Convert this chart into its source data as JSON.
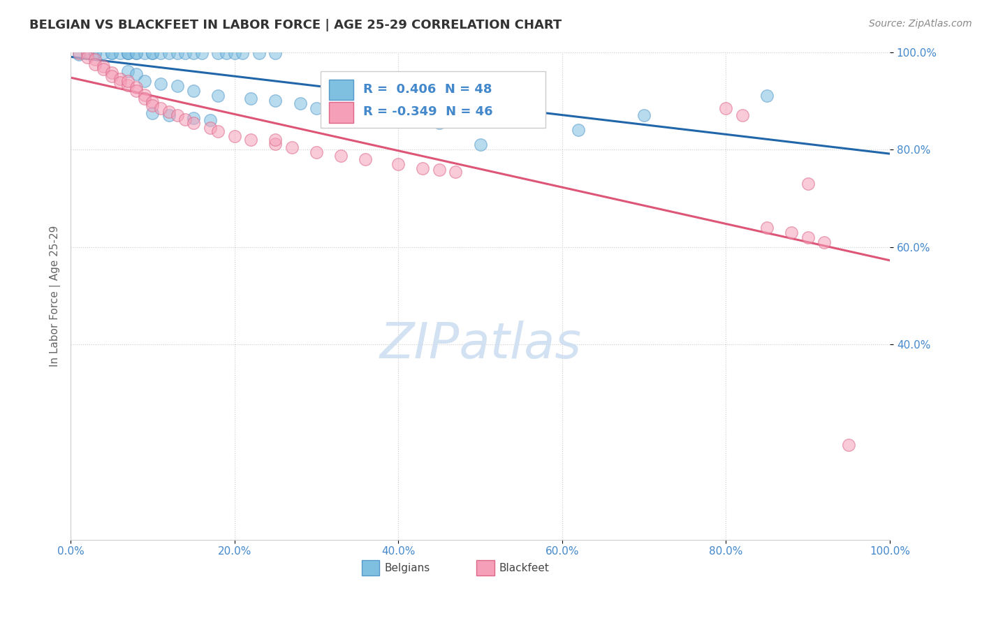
{
  "title": "BELGIAN VS BLACKFEET IN LABOR FORCE | AGE 25-29 CORRELATION CHART",
  "source_text": "Source: ZipAtlas.com",
  "ylabel": "In Labor Force | Age 25-29",
  "xlim": [
    0.0,
    1.0
  ],
  "ylim": [
    0.0,
    1.0
  ],
  "belgian_R": 0.406,
  "belgian_N": 48,
  "blackfeet_R": -0.349,
  "blackfeet_N": 46,
  "blue_scatter_color": "#7fbfdf",
  "blue_edge_color": "#5599cc",
  "blue_line_color": "#2266aa",
  "pink_scatter_color": "#f5a0b8",
  "pink_edge_color": "#dd6688",
  "pink_line_color": "#dd5577",
  "legend_label_1": "Belgians",
  "legend_label_2": "Blackfeet",
  "watermark_color": "#ccddf0",
  "grid_color": "#cccccc",
  "tick_color": "#4488cc",
  "title_color": "#333333",
  "source_color": "#888888",
  "belgians_x": [
    0.01,
    0.02,
    0.03,
    0.03,
    0.04,
    0.05,
    0.05,
    0.06,
    0.07,
    0.07,
    0.07,
    0.08,
    0.08,
    0.09,
    0.1,
    0.1,
    0.11,
    0.12,
    0.13,
    0.14,
    0.15,
    0.16,
    0.18,
    0.19,
    0.2,
    0.21,
    0.23,
    0.25,
    0.07,
    0.08,
    0.09,
    0.11,
    0.13,
    0.15,
    0.18,
    0.22,
    0.25,
    0.28,
    0.3,
    0.1,
    0.12,
    0.15,
    0.17,
    0.45,
    0.5,
    0.62,
    0.7,
    0.85
  ],
  "belgians_y": [
    0.995,
    0.998,
    0.998,
    0.998,
    0.998,
    0.998,
    0.998,
    0.998,
    0.998,
    0.998,
    0.998,
    0.998,
    0.998,
    0.998,
    0.998,
    0.998,
    0.998,
    0.998,
    0.998,
    0.998,
    0.998,
    0.998,
    0.998,
    0.998,
    0.998,
    0.998,
    0.998,
    0.998,
    0.96,
    0.955,
    0.94,
    0.935,
    0.93,
    0.92,
    0.91,
    0.905,
    0.9,
    0.895,
    0.885,
    0.875,
    0.87,
    0.865,
    0.86,
    0.855,
    0.81,
    0.84,
    0.87,
    0.91
  ],
  "blackfeet_x": [
    0.01,
    0.02,
    0.02,
    0.03,
    0.03,
    0.04,
    0.04,
    0.05,
    0.05,
    0.06,
    0.06,
    0.07,
    0.07,
    0.08,
    0.08,
    0.09,
    0.09,
    0.1,
    0.1,
    0.11,
    0.12,
    0.13,
    0.14,
    0.15,
    0.17,
    0.18,
    0.2,
    0.22,
    0.25,
    0.27,
    0.3,
    0.33,
    0.36,
    0.4,
    0.43,
    0.47,
    0.8,
    0.82,
    0.85,
    0.88,
    0.9,
    0.92,
    0.95,
    0.25,
    0.45,
    0.9
  ],
  "blackfeet_y": [
    0.998,
    0.998,
    0.99,
    0.985,
    0.975,
    0.97,
    0.965,
    0.958,
    0.95,
    0.945,
    0.938,
    0.932,
    0.94,
    0.928,
    0.92,
    0.912,
    0.905,
    0.898,
    0.89,
    0.885,
    0.877,
    0.87,
    0.862,
    0.855,
    0.845,
    0.838,
    0.828,
    0.82,
    0.812,
    0.805,
    0.795,
    0.788,
    0.78,
    0.77,
    0.762,
    0.755,
    0.885,
    0.87,
    0.64,
    0.63,
    0.62,
    0.61,
    0.195,
    0.82,
    0.758,
    0.73
  ]
}
